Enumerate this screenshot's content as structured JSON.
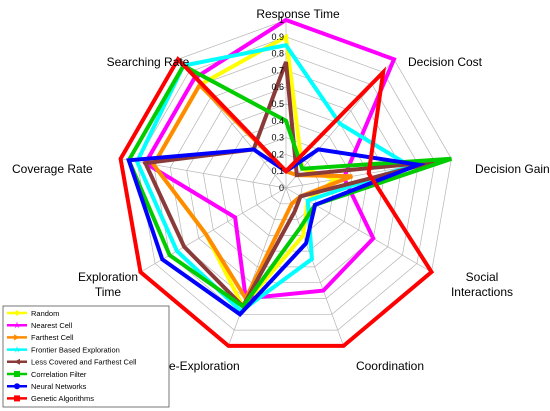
{
  "chart_data": {
    "type": "radar",
    "axes": [
      "Response Time",
      "Decision Cost",
      "Decision Gain",
      "Social Interactions",
      "Coordination",
      "Re-Exploration",
      "Exploration Time",
      "Coverage Rate",
      "Searching Rate"
    ],
    "axis_label_lines": [
      [
        "Response Time"
      ],
      [
        "Decision Cost"
      ],
      [
        "Decision Gain"
      ],
      [
        "Social",
        "Interactions"
      ],
      [
        "Coordination"
      ],
      [
        "Re-Exploration"
      ],
      [
        "Exploration",
        "Time"
      ],
      [
        "Coverage Rate"
      ],
      [
        "Searching Rate"
      ]
    ],
    "ticks": [
      "0",
      "0.1",
      "0.2",
      "0.3",
      "0.4",
      "0.5",
      "0.6",
      "0.7",
      "0.8",
      "0.9",
      "1"
    ],
    "rlim": [
      0,
      1
    ],
    "grid": true,
    "legend_position": "bottom-left",
    "series": [
      {
        "name": "Random",
        "color": "#ffff00",
        "marker": "diamond",
        "values": [
          0.9,
          0.15,
          0.3,
          0.15,
          0.3,
          0.75,
          0.55,
          0.8,
          0.8
        ]
      },
      {
        "name": "Nearest Cell",
        "color": "#ff00ff",
        "marker": "star",
        "values": [
          1.0,
          1.0,
          0.35,
          0.6,
          0.65,
          0.7,
          0.35,
          0.85,
          0.85
        ]
      },
      {
        "name": "Farthest Cell",
        "color": "#ff8c00",
        "marker": "triangle",
        "values": [
          0.1,
          0.1,
          0.4,
          0.1,
          0.1,
          0.7,
          0.55,
          0.8,
          0.8
        ]
      },
      {
        "name": "Frontier Based Exploration",
        "color": "#00ffff",
        "marker": "star",
        "values": [
          0.85,
          0.5,
          0.75,
          0.15,
          0.45,
          0.78,
          0.75,
          0.9,
          0.95
        ]
      },
      {
        "name": "Less Covered and Farthest Cell",
        "color": "#8b3a3a",
        "marker": "arrow",
        "values": [
          0.75,
          0.1,
          0.9,
          0.1,
          0.15,
          0.75,
          0.7,
          0.85,
          0.3
        ]
      },
      {
        "name": "Correlation Filter",
        "color": "#00cc00",
        "marker": "square",
        "values": [
          0.4,
          0.15,
          1.0,
          0.2,
          0.25,
          0.75,
          0.8,
          0.95,
          0.95
        ]
      },
      {
        "name": "Neural Networks",
        "color": "#0000ff",
        "marker": "circle",
        "values": [
          0.1,
          0.3,
          0.8,
          0.2,
          0.35,
          0.8,
          0.85,
          0.95,
          0.3
        ]
      },
      {
        "name": "Genetic Algorithms",
        "color": "#ff0000",
        "marker": "square",
        "values": [
          0.1,
          0.9,
          0.5,
          1.0,
          1.0,
          1.0,
          1.0,
          1.0,
          1.0
        ]
      }
    ]
  }
}
